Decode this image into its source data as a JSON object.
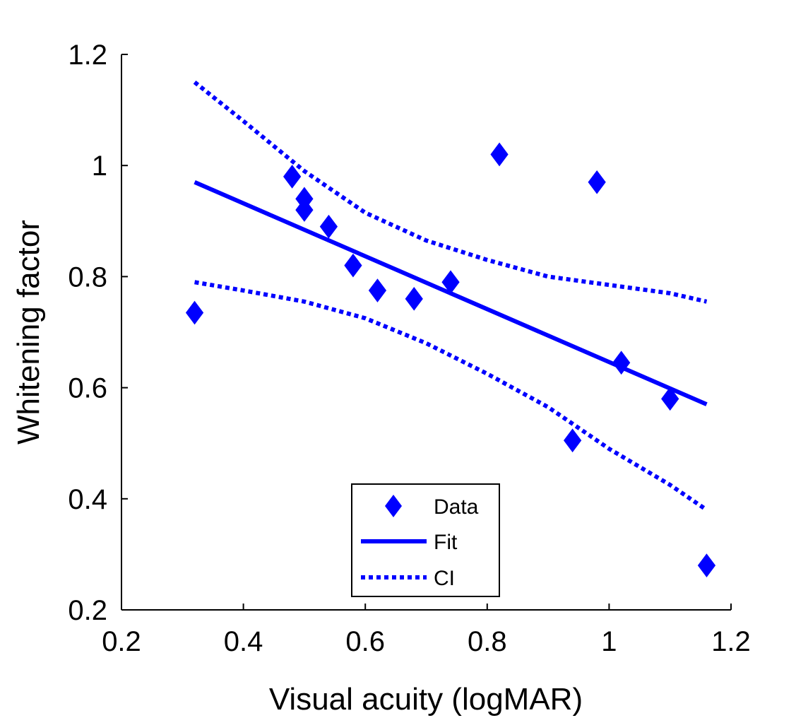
{
  "chart_data": {
    "type": "scatter",
    "title": "",
    "xlabel": "Visual acuity (logMAR)",
    "ylabel": "Whitening factor",
    "xlim": [
      0.2,
      1.2
    ],
    "ylim": [
      0.2,
      1.2
    ],
    "xticks": [
      0.2,
      0.4,
      0.6,
      0.8,
      1.0,
      1.2
    ],
    "yticks": [
      0.2,
      0.4,
      0.6,
      0.8,
      1.0,
      1.2
    ],
    "xtick_labels": [
      "0.2",
      "0.4",
      "0.6",
      "0.8",
      "1",
      "1.2"
    ],
    "ytick_labels": [
      "0.2",
      "0.4",
      "0.6",
      "0.8",
      "1",
      "1.2"
    ],
    "grid": false,
    "legend_position": "bottom-center",
    "series": [
      {
        "name": "Data",
        "kind": "scatter",
        "marker": "diamond",
        "color": "#0000ff",
        "x": [
          0.32,
          0.48,
          0.5,
          0.5,
          0.54,
          0.58,
          0.62,
          0.68,
          0.74,
          0.82,
          0.94,
          0.98,
          1.02,
          1.1,
          1.16
        ],
        "y": [
          0.735,
          0.98,
          0.94,
          0.92,
          0.89,
          0.82,
          0.775,
          0.76,
          0.79,
          1.02,
          0.505,
          0.97,
          0.645,
          0.58,
          0.28
        ]
      },
      {
        "name": "Fit",
        "kind": "line",
        "style": "solid",
        "color": "#0000ff",
        "x": [
          0.32,
          1.16
        ],
        "y": [
          0.97,
          0.57
        ]
      },
      {
        "name": "CI",
        "kind": "line",
        "style": "dotted",
        "color": "#0000ff",
        "x": [
          0.32,
          0.4,
          0.5,
          0.6,
          0.7,
          0.8,
          0.9,
          1.0,
          1.1,
          1.16
        ],
        "y": [
          1.15,
          1.08,
          0.99,
          0.915,
          0.865,
          0.83,
          0.8,
          0.785,
          0.77,
          0.755
        ]
      },
      {
        "name": "",
        "kind": "line",
        "style": "dotted",
        "color": "#0000ff",
        "x": [
          0.32,
          0.4,
          0.5,
          0.6,
          0.7,
          0.8,
          0.9,
          1.0,
          1.1,
          1.16
        ],
        "y": [
          0.79,
          0.775,
          0.755,
          0.725,
          0.68,
          0.625,
          0.565,
          0.49,
          0.425,
          0.38
        ]
      }
    ],
    "legend": [
      {
        "label": "Data",
        "symbol": "diamond"
      },
      {
        "label": "Fit",
        "symbol": "solid-line"
      },
      {
        "label": "CI",
        "symbol": "dotted-line"
      }
    ]
  }
}
